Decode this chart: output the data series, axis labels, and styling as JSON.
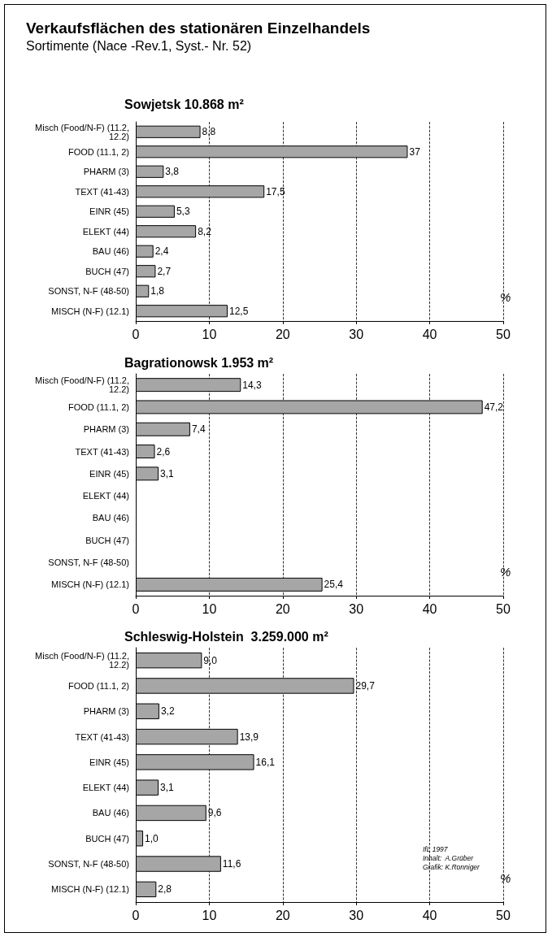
{
  "chart_data": [
    {
      "type": "bar",
      "orientation": "horizontal",
      "title": "Sowjetsk 10.868 m²",
      "annotations": [
        "Verkaufsflächen des stationären Einzelhandels",
        "Sortimente (Nace -Rev.1, Syst.- Nr. 52)"
      ],
      "categories": [
        "Misch (Food/N-F) (11.2,12.2)",
        "FOOD (11.1, 2)",
        "PHARM (3)",
        "TEXT (41-43)",
        "EINR (45)",
        "ELEKT (44)",
        "BAU (46)",
        "BUCH (47)",
        "SONST, N-F (48-50)",
        "MISCH (N-F) (12.1)"
      ],
      "values": [
        8.8,
        37,
        3.8,
        17.5,
        5.3,
        8.2,
        2.4,
        2.7,
        1.8,
        12.5
      ],
      "value_labels": [
        "8,8",
        "37",
        "3,8",
        "17,5",
        "5,3",
        "8,2",
        "2,4",
        "2,7",
        "1,8",
        "12,5"
      ],
      "color": "#a6a6a6",
      "xlim": [
        0,
        50
      ],
      "xticks": [
        0,
        10,
        20,
        30,
        40,
        50
      ],
      "xlabel": "%",
      "grid": "x"
    },
    {
      "type": "bar",
      "orientation": "horizontal",
      "title": "Bagrationowsk 1.953 m²",
      "categories": [
        "Misch (Food/N-F) (11.2,12.2)",
        "FOOD (11.1, 2)",
        "PHARM (3)",
        "TEXT (41-43)",
        "EINR (45)",
        "ELEKT (44)",
        "BAU (46)",
        "BUCH (47)",
        "SONST, N-F (48-50)",
        "MISCH (N-F) (12.1)"
      ],
      "values": [
        14.3,
        47.2,
        7.4,
        2.6,
        3.1,
        null,
        null,
        null,
        null,
        25.4
      ],
      "value_labels": [
        "14,3",
        "47,2",
        "7,4",
        "2,6",
        "3,1",
        null,
        null,
        null,
        null,
        "25,4"
      ],
      "color": "#a6a6a6",
      "xlim": [
        0,
        50
      ],
      "xticks": [
        0,
        10,
        20,
        30,
        40,
        50
      ],
      "xlabel": "%",
      "grid": "x"
    },
    {
      "type": "bar",
      "orientation": "horizontal",
      "title": "Schleswig-Holstein  3.259.000 m²",
      "annotations": [
        "IfL 1997",
        "Inhalt:  A.Grüber",
        "Grafik: K.Ronniger"
      ],
      "categories": [
        "Misch (Food/N-F) (11.2,12.2)",
        "FOOD (11.1, 2)",
        "PHARM (3)",
        "TEXT (41-43)",
        "EINR (45)",
        "ELEKT (44)",
        "BAU (46)",
        "BUCH (47)",
        "SONST, N-F (48-50)",
        "MISCH (N-F) (12.1)"
      ],
      "values": [
        9.0,
        29.7,
        3.2,
        13.9,
        16.1,
        3.1,
        9.6,
        1.0,
        11.6,
        2.8
      ],
      "value_labels": [
        "9,0",
        "29,7",
        "3,2",
        "13,9",
        "16,1",
        "3,1",
        "9,6",
        "1,0",
        "11,6",
        "2,8"
      ],
      "color": "#a6a6a6",
      "xlim": [
        0,
        50
      ],
      "xticks": [
        0,
        10,
        20,
        30,
        40,
        50
      ],
      "xlabel": "%",
      "grid": "x"
    }
  ]
}
